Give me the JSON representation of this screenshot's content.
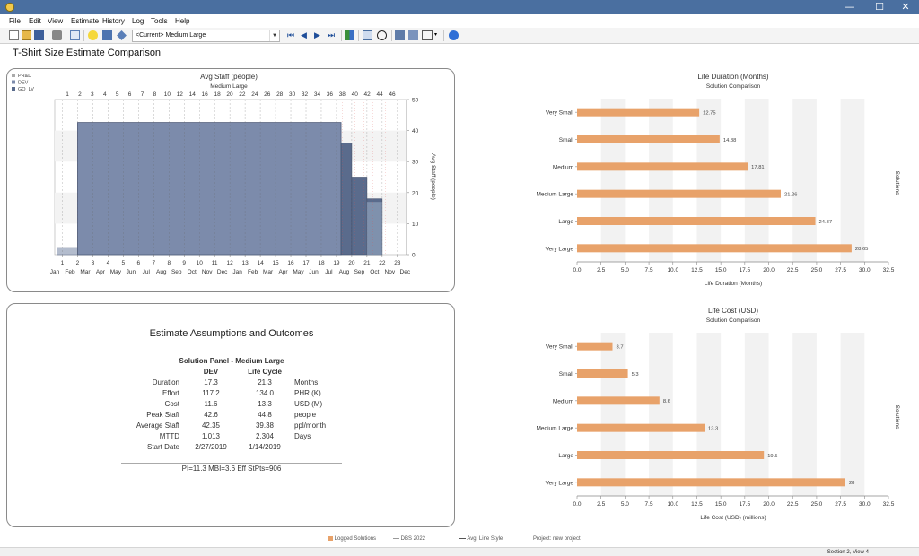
{
  "window": {
    "minimize": "—",
    "maximize": "☐",
    "close": "✕"
  },
  "menu": [
    "File",
    "Edit",
    "View",
    "Estimate",
    "History",
    "Log",
    "Tools",
    "Help"
  ],
  "toolbar": {
    "solution_select": "<Current> Medium Large",
    "icons": [
      "new-icon",
      "open-icon",
      "save-icon",
      "print-icon",
      "copy-icon",
      "idea-icon",
      "report-icon",
      "tools-icon",
      "first-icon",
      "prev-icon",
      "next-icon",
      "last-icon",
      "grid-icon",
      "target-icon",
      "export-icon",
      "settings-icon",
      "layout-icon",
      "help-icon"
    ]
  },
  "page_title": "T-Shirt Size Estimate Comparison",
  "staff_chart": {
    "title": "Avg Staff (people)",
    "subtitle": "Medium Large",
    "legend": [
      "PR&D",
      "DEV",
      "GO_LV"
    ],
    "y_right_label": "Avg Staff (people)",
    "top_ticks": [
      "1",
      "2",
      "3",
      "4",
      "5",
      "6",
      "7",
      "8",
      "10",
      "12",
      "14",
      "16",
      "18",
      "20",
      "22",
      "24",
      "26",
      "28",
      "30",
      "32",
      "34",
      "36",
      "38",
      "40",
      "42",
      "44",
      "46"
    ],
    "month_ticks": [
      "1",
      "2",
      "3",
      "4",
      "5",
      "6",
      "7",
      "8",
      "9",
      "10",
      "11",
      "12",
      "13",
      "14",
      "15",
      "16",
      "17",
      "18",
      "19",
      "20",
      "21",
      "22",
      "23"
    ],
    "month_names": [
      "Jan",
      "Feb",
      "Mar",
      "Apr",
      "May",
      "Jun",
      "Jul",
      "Aug",
      "Sep",
      "Oct",
      "Nov",
      "Dec",
      "Jan",
      "Feb",
      "Mar",
      "Apr",
      "May",
      "Jun",
      "Jul",
      "Aug",
      "Sep",
      "Oct",
      "Nov",
      "Dec"
    ],
    "y_ticks": [
      "0",
      "10",
      "20",
      "30",
      "40",
      "50"
    ]
  },
  "chart_data": [
    {
      "type": "area",
      "title": "Avg Staff (people)",
      "subtitle": "Medium Large",
      "ylabel": "Avg Staff (people)",
      "ylim": [
        0,
        50
      ],
      "series": [
        {
          "name": "PR&D",
          "x": [
            1,
            2
          ],
          "values": [
            2.3,
            2.3
          ]
        },
        {
          "name": "DEV",
          "x": [
            2,
            19.3
          ],
          "values": [
            42.6,
            42.6
          ]
        },
        {
          "name": "GO_LV",
          "x": [
            19.3,
            20,
            21,
            22
          ],
          "values": [
            36,
            25,
            18,
            0
          ]
        }
      ]
    },
    {
      "type": "bar",
      "title": "Life Duration (Months)",
      "subtitle": "Solution Comparison",
      "xlabel": "Life Duration (Months)",
      "ylabel": "Solutions",
      "categories": [
        "Very Small",
        "Small",
        "Medium",
        "Medium Large",
        "Large",
        "Very Large"
      ],
      "values": [
        12.75,
        14.88,
        17.81,
        21.26,
        24.87,
        28.65
      ],
      "xlim": [
        0,
        32.5
      ],
      "ticks": [
        "0.0",
        "2.5",
        "5.0",
        "7.5",
        "10.0",
        "12.5",
        "15.0",
        "17.5",
        "20.0",
        "22.5",
        "25.0",
        "27.5",
        "30.0",
        "32.5"
      ]
    },
    {
      "type": "bar",
      "title": "Life Cost (USD)",
      "subtitle": "Solution Comparison",
      "xlabel": "Life Cost (USD) (millions)",
      "ylabel": "Solutions",
      "categories": [
        "Very Small",
        "Small",
        "Medium",
        "Medium Large",
        "Large",
        "Very Large"
      ],
      "values": [
        3.7,
        5.3,
        8.6,
        13.3,
        19.5,
        28.0
      ],
      "xlim": [
        0,
        32.5
      ],
      "ticks": [
        "0.0",
        "2.5",
        "5.0",
        "7.5",
        "10.0",
        "12.5",
        "15.0",
        "17.5",
        "20.0",
        "22.5",
        "25.0",
        "27.5",
        "30.0",
        "32.5"
      ]
    }
  ],
  "assumptions": {
    "title": "Estimate Assumptions and Outcomes",
    "panel_title": "Solution Panel - Medium Large",
    "col_dev": "DEV",
    "col_life": "Life Cycle",
    "rows": [
      {
        "label": "Duration",
        "dev": "17.3",
        "life": "21.3",
        "unit": "Months"
      },
      {
        "label": "Effort",
        "dev": "117.2",
        "life": "134.0",
        "unit": "PHR (K)"
      },
      {
        "label": "Cost",
        "dev": "11.6",
        "life": "13.3",
        "unit": "USD (M)"
      },
      {
        "label": "Peak Staff",
        "dev": "42.6",
        "life": "44.8",
        "unit": "people"
      },
      {
        "label": "Average Staff",
        "dev": "42.35",
        "life": "39.38",
        "unit": "ppl/month"
      },
      {
        "label": "MTTD",
        "dev": "1.013",
        "life": "2.304",
        "unit": "Days"
      },
      {
        "label": "Start Date",
        "dev": "2/27/2019",
        "life": "1/14/2019",
        "unit": ""
      }
    ],
    "footer": "PI=11.3    MBI=3.6    Eff StPts=906"
  },
  "footer_legend": {
    "logged": "Logged Solutions",
    "dbs": "DBS 2022",
    "avg": "Avg. Line Style",
    "project": "Project: new project"
  },
  "status": {
    "right": "Section 2, View 4"
  },
  "colors": {
    "bar": "#e8a26a",
    "staff_dev": "#7c8bab",
    "staff_golive": "#5a6b8c",
    "band": "#f2f2f2"
  }
}
